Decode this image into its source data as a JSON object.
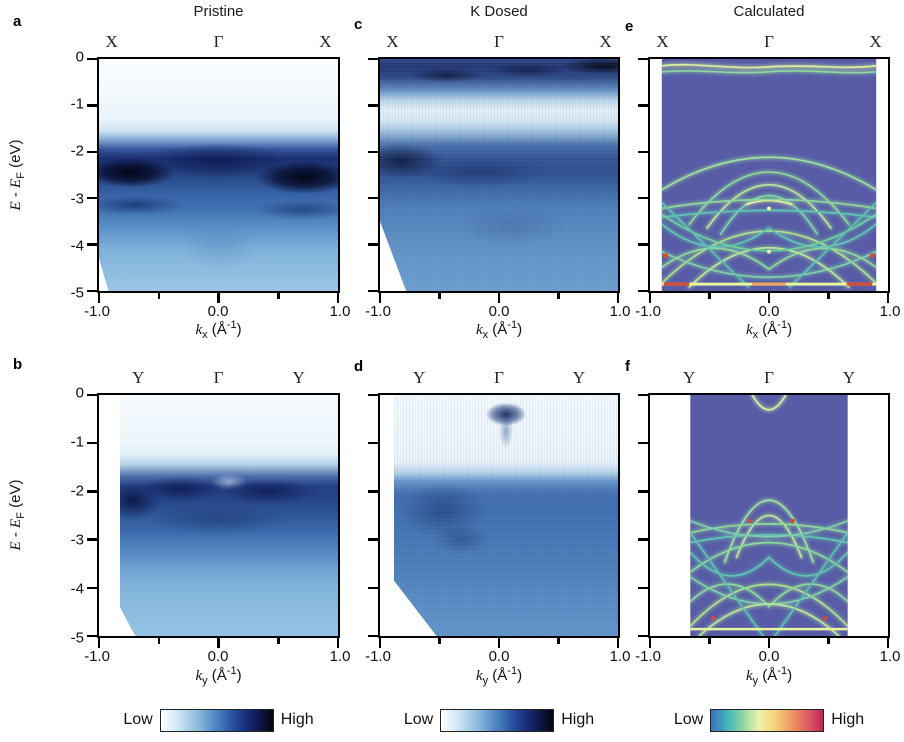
{
  "figure": {
    "titles": [
      "Pristine",
      "K Dosed",
      "Calculated"
    ],
    "ylabel": {
      "e1": "E",
      "dash": " - ",
      "e2": "E",
      "sub": "F",
      "unit": " (eV)"
    },
    "xaxis": {
      "k": "k",
      "sub_x": "x",
      "sub_y": "y",
      "unit_pre": " (Å",
      "unit_sup": "-1",
      "unit_post": ")"
    },
    "panels": [
      {
        "letter": "a",
        "sym": [
          "X",
          "Γ",
          "X"
        ],
        "xticks": [
          "-1.0",
          "0.0",
          "1.0"
        ],
        "yticks": [
          "0",
          "-1",
          "-2",
          "-3",
          "-4",
          "-5"
        ]
      },
      {
        "letter": "c",
        "sym": [
          "X",
          "Γ",
          "X"
        ],
        "xticks": [
          "-1.0",
          "0.0",
          "1.0"
        ]
      },
      {
        "letter": "e",
        "sym": [
          "X",
          "Γ",
          "X"
        ],
        "xticks": [
          "-1.0",
          "0.0",
          "1.0"
        ]
      },
      {
        "letter": "b",
        "sym": [
          "Y",
          "Γ",
          "Y"
        ],
        "xticks": [
          "-1.0",
          "0.0",
          "1.0"
        ],
        "yticks": [
          "0",
          "-1",
          "-2",
          "-3",
          "-4",
          "-5"
        ]
      },
      {
        "letter": "d",
        "sym": [
          "Y",
          "Γ",
          "Y"
        ],
        "xticks": [
          "-1.0",
          "0.0",
          "1.0"
        ]
      },
      {
        "letter": "f",
        "sym": [
          "Y",
          "Γ",
          "Y"
        ],
        "xticks": [
          "-1.0",
          "0.0",
          "1.0"
        ]
      }
    ],
    "colorbars": [
      {
        "low": "Low",
        "high": "High",
        "colors": [
          "#ffffff",
          "#c9e3f4",
          "#8abade",
          "#4a83c0",
          "#23479a",
          "#131e5e",
          "#05070f"
        ]
      },
      {
        "low": "Low",
        "high": "High",
        "colors": [
          "#ffffff",
          "#c9e3f4",
          "#8abade",
          "#4a83c0",
          "#23479a",
          "#131e5e",
          "#05070f"
        ]
      },
      {
        "low": "Low",
        "high": "High",
        "colors": [
          "#3b6fc0",
          "#42b3be",
          "#8fd6a2",
          "#eef2ae",
          "#f6d27e",
          "#ee9a5f",
          "#dd5f66",
          "#c22650"
        ]
      }
    ]
  },
  "chart_data": [
    {
      "id": "a",
      "type": "heatmap",
      "technique": "ARPES intensity map",
      "title": "Pristine",
      "cut": "X–Γ–X",
      "xlabel": "k_x (Å⁻¹)",
      "ylabel": "E − E_F (eV)",
      "xlim": [
        -1.0,
        1.0
      ],
      "ylim": [
        -5,
        0
      ],
      "xticks": [
        -1.0,
        0.0,
        1.0
      ],
      "yticks": [
        0,
        -1,
        -2,
        -3,
        -4,
        -5
      ],
      "high_symmetry": [
        {
          "label": "X",
          "k": -0.88
        },
        {
          "label": "Γ",
          "k": 0.0
        },
        {
          "label": "X",
          "k": 0.88
        }
      ],
      "intensity_scale": [
        "Low",
        "High"
      ],
      "colormap": "white→blue→black",
      "features": [
        "negligible intensity between E_F and −1.5 eV",
        "intense flat band near −2.0 to −2.6 eV, darkest at k≈±0.8",
        "weaker dispersive band near −3.1 eV",
        "broad faint intensity −3.5 to −5 eV"
      ]
    },
    {
      "id": "c",
      "type": "heatmap",
      "technique": "ARPES intensity map",
      "title": "K Dosed",
      "cut": "X–Γ–X",
      "xlabel": "k_x (Å⁻¹)",
      "ylabel": "E − E_F (eV)",
      "xlim": [
        -1.0,
        1.0
      ],
      "ylim": [
        -5,
        0
      ],
      "xticks": [
        -1.0,
        0.0,
        1.0
      ],
      "yticks": [
        0,
        -1,
        -2,
        -3,
        -4,
        -5
      ],
      "high_symmetry": [
        {
          "label": "X",
          "k": -0.88
        },
        {
          "label": "Γ",
          "k": 0.0
        },
        {
          "label": "X",
          "k": 0.88
        }
      ],
      "intensity_scale": [
        "Low",
        "High"
      ],
      "colormap": "white→blue→black",
      "features": [
        "new intense band filling 0 to −0.5 eV after K dosing, darkest near top right",
        "light low-intensity window near −1.1 eV",
        "broad band −1.8 to −2.8 eV, strongest at k≈−0.8",
        "diffuse noisy intensity below −3 eV",
        "white diagonal cutoff at bottom left"
      ]
    },
    {
      "id": "e",
      "type": "heatmap",
      "technique": "calculated spectral function",
      "title": "Calculated",
      "cut": "X–Γ–X",
      "xlabel": "k_x (Å⁻¹)",
      "ylabel": "E − E_F (eV)",
      "xlim": [
        -1.0,
        1.0
      ],
      "ylim": [
        -5,
        0
      ],
      "xticks": [
        -1.0,
        0.0,
        1.0
      ],
      "yticks": [
        0,
        -1,
        -2,
        -3,
        -4,
        -5
      ],
      "high_symmetry": [
        {
          "label": "X",
          "k": -0.9
        },
        {
          "label": "Γ",
          "k": 0.0
        },
        {
          "label": "X",
          "k": 0.9
        }
      ],
      "intensity_scale": [
        "Low",
        "High"
      ],
      "colormap": "purple-blue→cyan→green→yellow→orange→red",
      "features": [
        "data spans |k_x|≤0.9 with white margins outside",
        "flat band just below E_F (≈−0.15 eV)",
        "hole-like arc with apex ≈−2.1 eV at Γ reaching −2.8 eV at X",
        "nested hole-like arches −2.4 to −3 eV at Γ",
        "dense crossing band manifold −3 to −5 eV",
        "high-intensity red spots near −4.3 eV at edges and along −4.85 eV bottom line"
      ]
    },
    {
      "id": "b",
      "type": "heatmap",
      "technique": "ARPES intensity map",
      "title": "Pristine",
      "cut": "Y–Γ–Y",
      "xlabel": "k_y (Å⁻¹)",
      "ylabel": "E − E_F (eV)",
      "xlim": [
        -1.0,
        1.0
      ],
      "ylim": [
        -5,
        0
      ],
      "xticks": [
        -1.0,
        0.0,
        1.0
      ],
      "yticks": [
        0,
        -1,
        -2,
        -3,
        -4,
        -5
      ],
      "high_symmetry": [
        {
          "label": "Y",
          "k": -0.66
        },
        {
          "label": "Γ",
          "k": 0.0
        },
        {
          "label": "Y",
          "k": 0.66
        }
      ],
      "intensity_scale": [
        "Low",
        "High"
      ],
      "colormap": "white→blue→black",
      "features": [
        "no intensity between E_F and −1.5 eV",
        "intense flat band −1.8 to −2.6 eV with slight dip at Γ",
        "secondary band −2.6 to −3.2 eV",
        "faint diffuse intensity below −3.5 eV",
        "data begins at k_y≈−0.83"
      ]
    },
    {
      "id": "d",
      "type": "heatmap",
      "technique": "ARPES intensity map",
      "title": "K Dosed",
      "cut": "Y–Γ–Y",
      "xlabel": "k_y (Å⁻¹)",
      "ylabel": "E − E_F (eV)",
      "xlim": [
        -1.0,
        1.0
      ],
      "ylim": [
        -5,
        0
      ],
      "xticks": [
        -1.0,
        0.0,
        1.0
      ],
      "yticks": [
        0,
        -1,
        -2,
        -3,
        -4,
        -5
      ],
      "high_symmetry": [
        {
          "label": "Y",
          "k": -0.66
        },
        {
          "label": "Γ",
          "k": 0.0
        },
        {
          "label": "Y",
          "k": 0.66
        }
      ],
      "intensity_scale": [
        "Low",
        "High"
      ],
      "colormap": "white→blue→black",
      "features": [
        "small dark electron pocket at Γ between 0 and −0.5 eV",
        "light region to −1.5 eV",
        "broad diffuse valence intensity below −1.7 eV, darker patch near k_y≈−0.5",
        "white diagonal cutoff at bottom left"
      ]
    },
    {
      "id": "f",
      "type": "heatmap",
      "technique": "calculated spectral function",
      "title": "Calculated",
      "cut": "Y–Γ–Y",
      "xlabel": "k_y (Å⁻¹)",
      "ylabel": "E − E_F (eV)",
      "xlim": [
        -1.0,
        1.0
      ],
      "ylim": [
        -5,
        0
      ],
      "xticks": [
        -1.0,
        0.0,
        1.0
      ],
      "yticks": [
        0,
        -1,
        -2,
        -3,
        -4,
        -5
      ],
      "high_symmetry": [
        {
          "label": "Y",
          "k": -0.66
        },
        {
          "label": "Γ",
          "k": 0.0
        },
        {
          "label": "Y",
          "k": 0.66
        }
      ],
      "intensity_scale": [
        "Low",
        "High"
      ],
      "colormap": "purple-blue→cyan→green→yellow→orange→red",
      "features": [
        "data spans |k_y|≤0.66 with wide white margins",
        "electron pocket at Γ dipping to ≈−0.3 eV",
        "hole-like band with apex ≈−2.2 eV at Γ",
        "flat arcs near −2.6 to −3 eV with red hot spots",
        "dense crossing manifold −3 to −5 eV"
      ]
    }
  ]
}
